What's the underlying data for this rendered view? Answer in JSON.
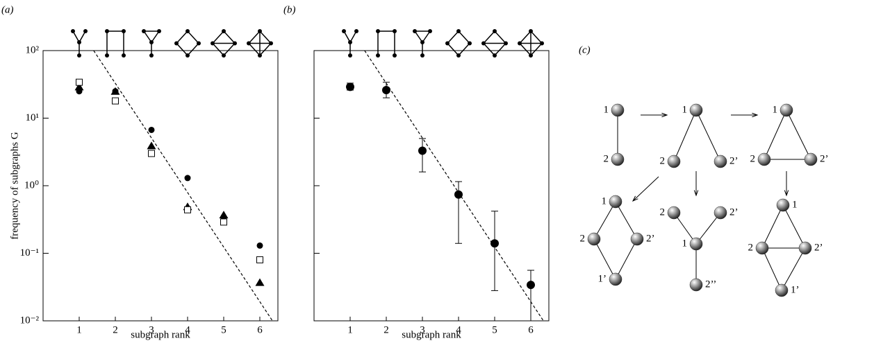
{
  "chart_data": [
    {
      "type": "scatter",
      "panel_label": "(a)",
      "ylabel": "frequency of subgraphs G",
      "xlabel": "subgraph rank",
      "x": [
        1,
        2,
        3,
        4,
        5,
        6
      ],
      "xlim": [
        0,
        6.5
      ],
      "xticks": [
        1,
        2,
        3,
        4,
        5,
        6
      ],
      "ylim": [
        0.01,
        100
      ],
      "log_y": true,
      "yticks": [
        {
          "value": 0.01,
          "label": "10⁻²"
        },
        {
          "value": 0.1,
          "label": "10⁻¹"
        },
        {
          "value": 1,
          "label": "10⁰"
        },
        {
          "value": 10,
          "label": "10¹"
        },
        {
          "value": 100,
          "label": "10²"
        }
      ],
      "series": [
        {
          "marker": "circle",
          "color": "#000000",
          "values": [
            25,
            25,
            6.7,
            1.3,
            0.31,
            0.13
          ]
        },
        {
          "marker": "triangle",
          "color": "#000000",
          "values": [
            29,
            25,
            3.9,
            0.49,
            0.37,
            0.037
          ]
        },
        {
          "marker": "square-open",
          "color": "#000000",
          "values": [
            34,
            18,
            3.0,
            0.44,
            0.29,
            0.08
          ]
        }
      ],
      "fit_line": {
        "x": [
          1.4,
          6.35
        ],
        "y": [
          100,
          0.01
        ]
      }
    },
    {
      "type": "scatter",
      "panel_label": "(b)",
      "xlabel": "subgraph rank",
      "x": [
        1,
        2,
        3,
        4,
        5,
        6
      ],
      "xlim": [
        0,
        6.5
      ],
      "xticks": [
        1,
        2,
        3,
        4,
        5,
        6
      ],
      "ylim": [
        0.01,
        100
      ],
      "log_y": true,
      "ytick_labels": false,
      "yticks": [
        0.01,
        0.1,
        1,
        10,
        100
      ],
      "series": [
        {
          "marker": "circle",
          "color": "#000000",
          "values": [
            29,
            26,
            3.3,
            0.74,
            0.14,
            0.034
          ],
          "lower": [
            26,
            20,
            1.6,
            0.14,
            0.028,
            0.01
          ],
          "upper": [
            33,
            34,
            5.0,
            1.15,
            0.42,
            0.056
          ]
        }
      ],
      "fit_line": {
        "x": [
          1.4,
          6.35
        ],
        "y": [
          100,
          0.01
        ]
      }
    }
  ],
  "diagram": {
    "panel_label": "(c)",
    "nodes": [
      {
        "label": "1"
      },
      {
        "label": "2"
      },
      {
        "label": "1"
      },
      {
        "label": "2"
      },
      {
        "label": "2’"
      },
      {
        "label": "1"
      },
      {
        "label": "2"
      },
      {
        "label": "2’"
      },
      {
        "label": "1"
      },
      {
        "label": "2"
      },
      {
        "label": "2’"
      },
      {
        "label": "1’"
      },
      {
        "label": "2"
      },
      {
        "label": "2’"
      },
      {
        "label": "1"
      },
      {
        "label": "2’’"
      },
      {
        "label": "1"
      },
      {
        "label": "2"
      },
      {
        "label": "2’"
      },
      {
        "label": "1’"
      }
    ]
  }
}
